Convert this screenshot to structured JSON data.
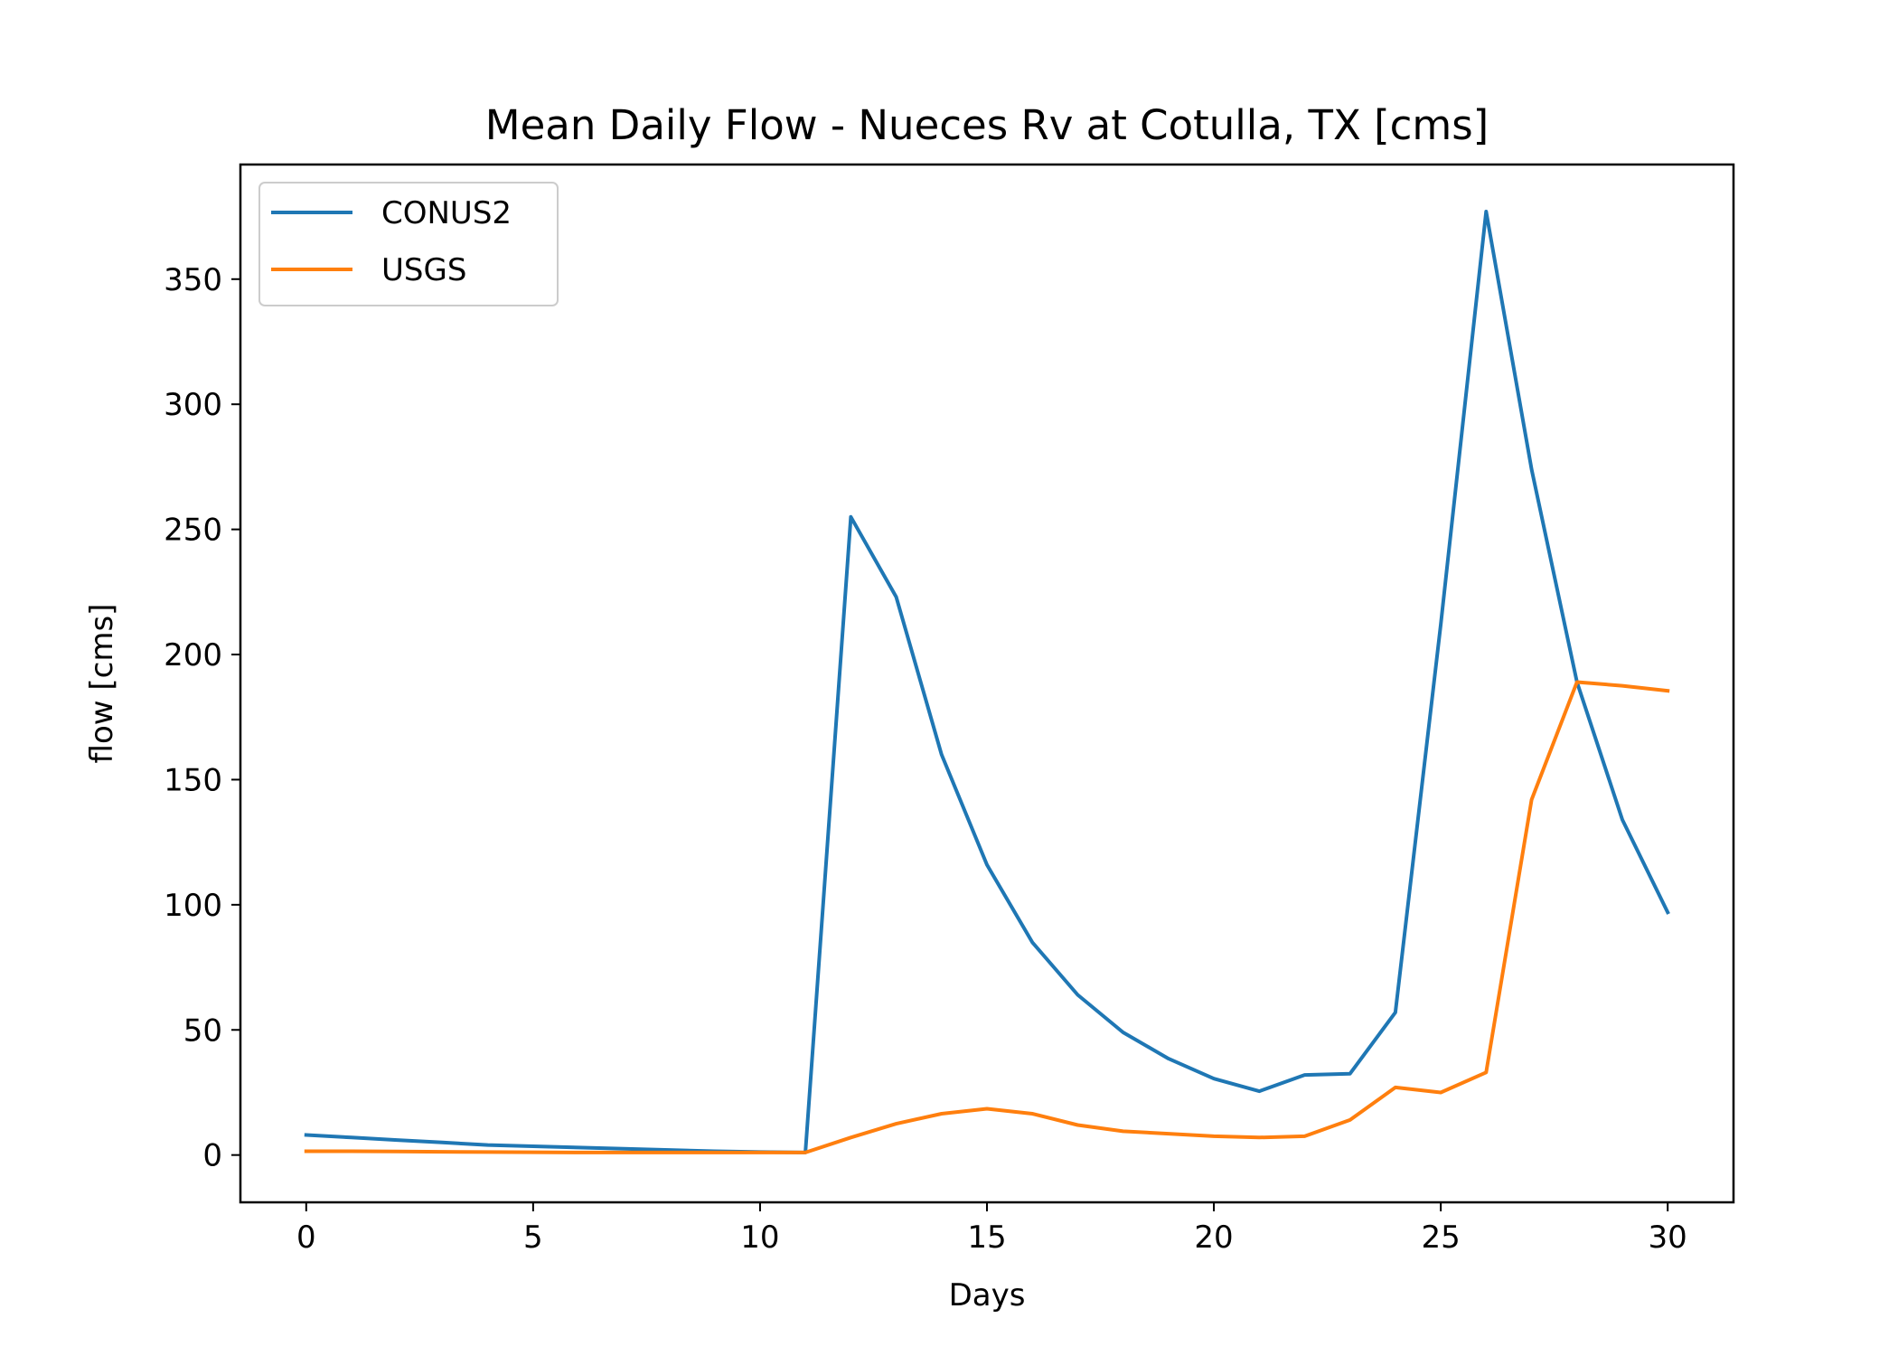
{
  "chart_data": {
    "type": "line",
    "title": "Mean Daily Flow - Nueces Rv at Cotulla, TX [cms]",
    "xlabel": "Days",
    "ylabel": "flow [cms]",
    "xlim": [
      -1.45,
      31.45
    ],
    "ylim": [
      -18.9,
      395.8
    ],
    "xticks": [
      0,
      5,
      10,
      15,
      20,
      25,
      30
    ],
    "yticks": [
      0,
      50,
      100,
      150,
      200,
      250,
      300,
      350
    ],
    "grid": false,
    "legend_position": "top-left",
    "x": [
      0,
      1,
      2,
      3,
      4,
      5,
      6,
      7,
      8,
      9,
      10,
      11,
      12,
      13,
      14,
      15,
      16,
      17,
      18,
      19,
      20,
      21,
      22,
      23,
      24,
      25,
      26,
      27,
      28,
      29,
      30
    ],
    "series": [
      {
        "name": "CONUS2",
        "color": "#1f77b4",
        "values": [
          8,
          7,
          6,
          5,
          4,
          3.5,
          3,
          2.5,
          2,
          1.5,
          1.2,
          1,
          255,
          223,
          160,
          116,
          85,
          64,
          49,
          38.5,
          30.5,
          25.5,
          32,
          32.5,
          57,
          212,
          377,
          274,
          189,
          134,
          97
        ]
      },
      {
        "name": "USGS",
        "color": "#ff7f0e",
        "values": [
          1.5,
          1.5,
          1.4,
          1.3,
          1.2,
          1.1,
          1,
          1,
          1,
          1,
          1,
          1,
          7,
          12.5,
          16.5,
          18.5,
          16.5,
          12,
          9.5,
          8.5,
          7.5,
          7,
          7.5,
          14,
          27,
          25,
          33,
          142,
          189,
          187.5,
          185.5
        ]
      }
    ]
  }
}
